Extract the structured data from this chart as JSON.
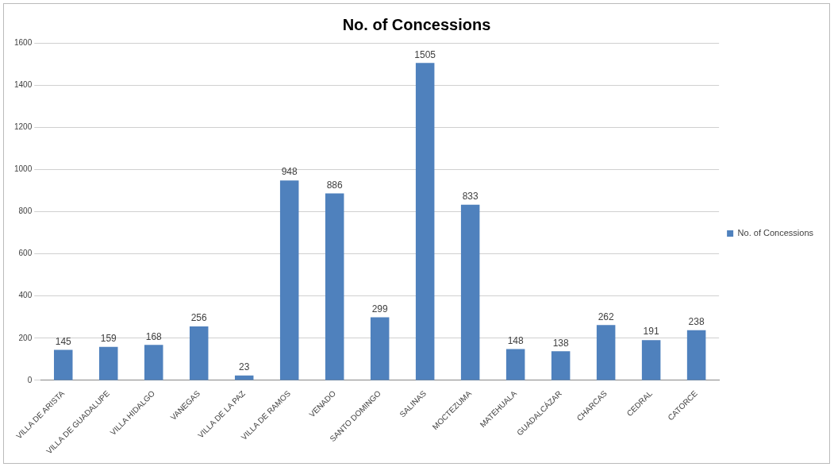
{
  "chart_data": {
    "type": "bar",
    "title": "No. of Concessions",
    "categories": [
      "VILLA DE ARISTA",
      "VILLA DE GUADALUPE",
      "VILLA HIDALGO",
      "VANEGAS",
      "VILLA DE LA PAZ",
      "VILLA DE RAMOS",
      "VENADO",
      "SANTO DOMINGO",
      "SALINAS",
      "MOCTEZUMA",
      "MATEHUALA",
      "GUADALCÁZAR",
      "CHARCAS",
      "CEDRAL",
      "CATORCE"
    ],
    "series": [
      {
        "name": "No. of Concessions",
        "color": "#4f81bd",
        "values": [
          145,
          159,
          168,
          256,
          23,
          948,
          886,
          299,
          1505,
          833,
          148,
          138,
          262,
          191,
          238
        ]
      }
    ],
    "ylim": [
      0,
      1600
    ],
    "yticks": [
      0,
      200,
      400,
      600,
      800,
      1000,
      1200,
      1400,
      1600
    ],
    "grid": "y",
    "legend": "right",
    "data_labels": true
  }
}
